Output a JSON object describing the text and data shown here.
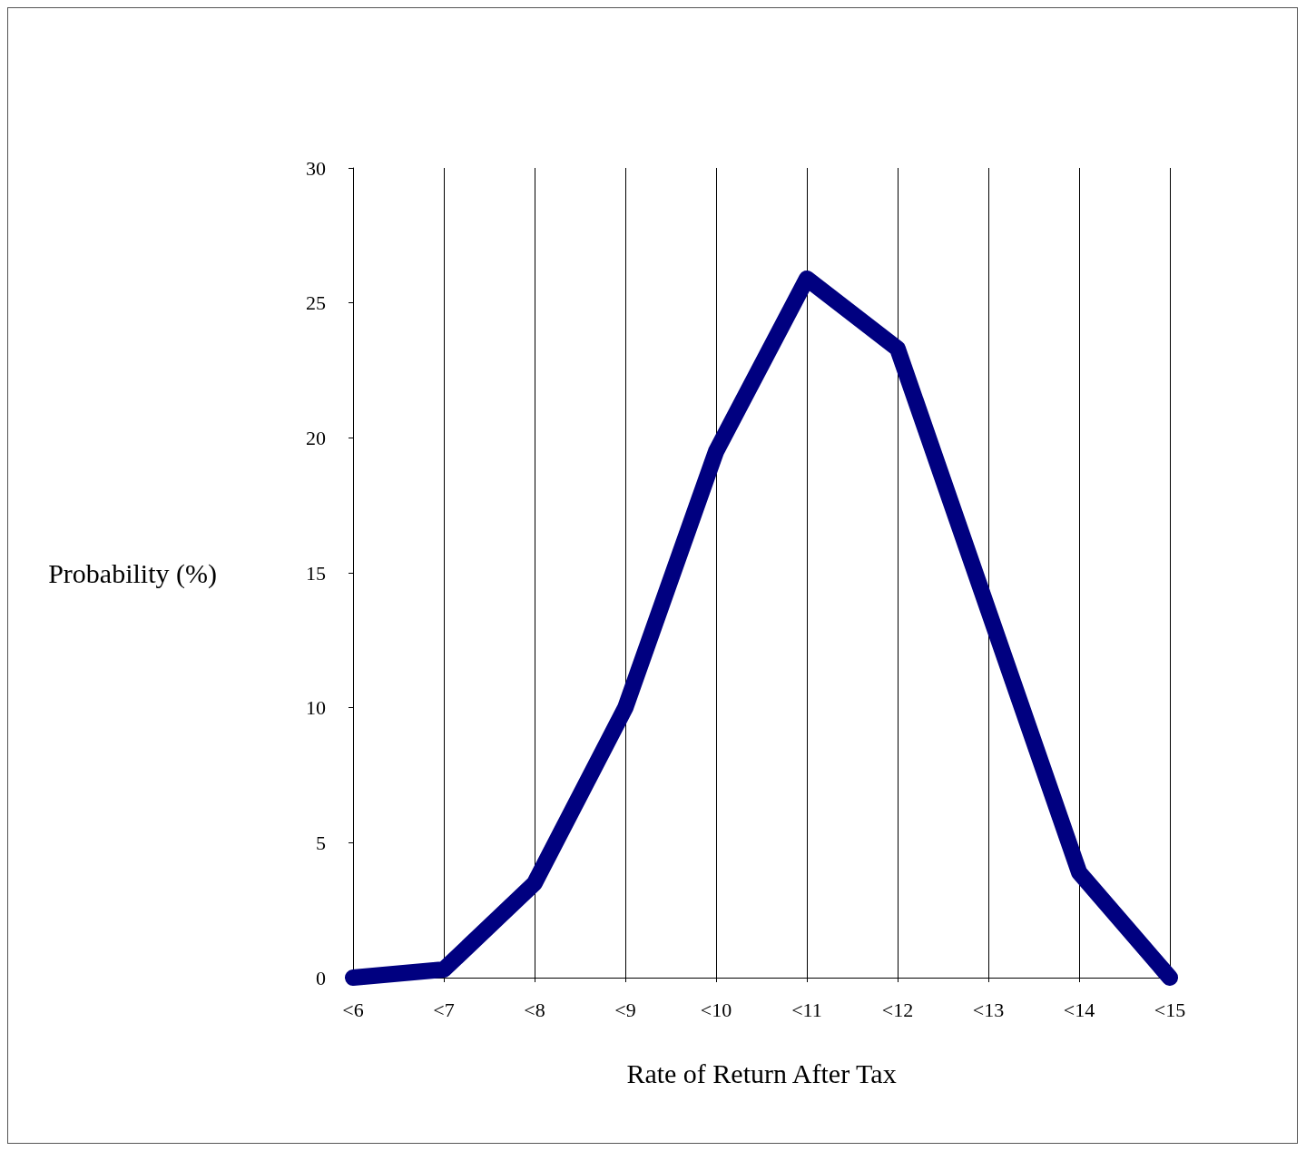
{
  "chart_data": {
    "type": "line",
    "xlabel": "Rate of Return After Tax",
    "ylabel": "Probability (%)",
    "categories": [
      "<6",
      "<7",
      "<8",
      "<9",
      "<10",
      "<11",
      "<12",
      "<13",
      "<14",
      "<15"
    ],
    "series": [
      {
        "color": "#000080",
        "values": [
          0,
          0.3,
          3.5,
          10,
          19.5,
          25.9,
          23.3,
          13.6,
          3.9,
          0
        ]
      }
    ],
    "ylim": [
      0,
      30
    ],
    "yticks": [
      0,
      5,
      10,
      15,
      20,
      25,
      30
    ],
    "grid": "x",
    "line_style": "solid"
  }
}
